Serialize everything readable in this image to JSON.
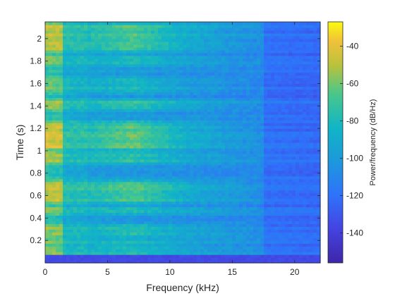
{
  "chart_data": {
    "type": "heatmap",
    "title": "",
    "xlabel": "Frequency (kHz)",
    "ylabel": "Time (s)",
    "colorbar_label": "Power/frequency (dB/Hz)",
    "xlim": [
      0,
      22.05
    ],
    "ylim": [
      0,
      2.15
    ],
    "xticks": [
      0,
      5,
      10,
      15,
      20
    ],
    "yticks": [
      0.2,
      0.4,
      0.6,
      0.8,
      1,
      1.2,
      1.4,
      1.6,
      1.8,
      2
    ],
    "clim": [
      -156,
      -27
    ],
    "cticks": [
      -140,
      -120,
      -100,
      -80,
      -60,
      -40
    ],
    "colormap": "parula",
    "grid": false,
    "legend": "colorbar-right",
    "activity_bands": [
      {
        "time": [
          0.07,
          0.2
        ],
        "level": 0.45
      },
      {
        "time": [
          0.24,
          0.34
        ],
        "level": 0.55
      },
      {
        "time": [
          0.44,
          0.5
        ],
        "level": 0.45
      },
      {
        "time": [
          0.55,
          0.72
        ],
        "level": 0.82
      },
      {
        "time": [
          0.9,
          1.0
        ],
        "level": 0.6
      },
      {
        "time": [
          1.03,
          1.26
        ],
        "level": 0.9
      },
      {
        "time": [
          1.37,
          1.45
        ],
        "level": 0.65
      },
      {
        "time": [
          1.52,
          1.66
        ],
        "level": 0.5
      },
      {
        "time": [
          1.77,
          1.85
        ],
        "level": 0.45
      },
      {
        "time": [
          1.9,
          2.12
        ],
        "level": 0.8
      }
    ]
  }
}
